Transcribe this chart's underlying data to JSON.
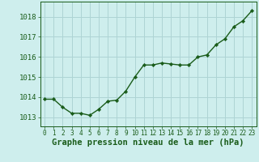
{
  "x": [
    0,
    1,
    2,
    3,
    4,
    5,
    6,
    7,
    8,
    9,
    10,
    11,
    12,
    13,
    14,
    15,
    16,
    17,
    18,
    19,
    20,
    21,
    22,
    23
  ],
  "y": [
    1013.9,
    1013.9,
    1013.5,
    1013.2,
    1013.2,
    1013.1,
    1013.4,
    1013.8,
    1013.85,
    1014.3,
    1015.0,
    1015.6,
    1015.6,
    1015.7,
    1015.65,
    1015.6,
    1015.6,
    1016.0,
    1016.1,
    1016.6,
    1016.9,
    1017.5,
    1017.8,
    1018.3
  ],
  "line_color": "#1a5c1a",
  "marker": "D",
  "marker_size": 2.2,
  "bg_color": "#ceeeed",
  "grid_color": "#aed4d4",
  "xlabel": "Graphe pression niveau de la mer (hPa)",
  "xlabel_fontsize": 7.5,
  "xlabel_color": "#1a5c1a",
  "ylabel_ticks": [
    1013,
    1014,
    1015,
    1016,
    1017,
    1018
  ],
  "ylim": [
    1012.55,
    1018.75
  ],
  "xlim": [
    -0.5,
    23.5
  ],
  "tick_color": "#1a5c1a",
  "ytick_fontsize": 6.5,
  "xtick_fontsize": 5.5,
  "line_width": 1.0,
  "title": ""
}
